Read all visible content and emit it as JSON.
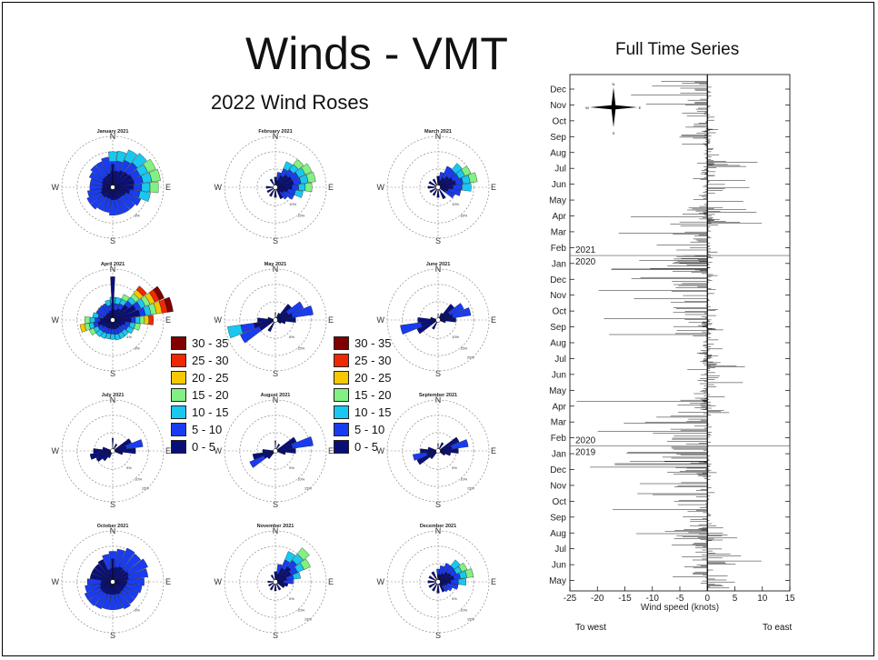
{
  "slide": {
    "title": "Winds - VMT",
    "subtitle": "2022 Wind Roses",
    "series_title": "Full Time Series",
    "to_west": "To west",
    "to_east": "To east"
  },
  "colors": {
    "speed_bins": [
      "#0a0f78",
      "#1a3cf0",
      "#19c8f0",
      "#82f082",
      "#f5c800",
      "#f02800",
      "#800000"
    ]
  },
  "legend": {
    "items": [
      "30 - 35",
      "25 - 30",
      "20 - 25",
      "15 - 20",
      "10 - 15",
      "5 - 10",
      "0 - 5"
    ]
  },
  "compass": {
    "n": "N",
    "s": "S",
    "w": "W",
    "e": "E"
  },
  "chart_data": [
    {
      "type": "polar-bar",
      "name": "wind-roses",
      "roses": [
        {
          "title": "January 2021",
          "rings": [
            "5%",
            "8%"
          ],
          "dirs": [
            [
              0,
              0.7
            ],
            [
              15,
              0.72
            ],
            [
              30,
              0.8
            ],
            [
              45,
              0.85
            ],
            [
              60,
              0.92
            ],
            [
              75,
              0.95
            ],
            [
              90,
              0.9
            ],
            [
              105,
              0.75
            ],
            [
              120,
              0.6
            ],
            [
              135,
              0.55
            ],
            [
              150,
              0.55
            ],
            [
              165,
              0.55
            ],
            [
              180,
              0.55
            ],
            [
              195,
              0.5
            ],
            [
              210,
              0.5
            ],
            [
              225,
              0.55
            ],
            [
              240,
              0.55
            ],
            [
              255,
              0.5
            ],
            [
              270,
              0.45
            ],
            [
              285,
              0.45
            ],
            [
              300,
              0.5
            ],
            [
              315,
              0.55
            ],
            [
              330,
              0.55
            ],
            [
              345,
              0.6
            ]
          ],
          "spike": [
            0,
            0.45
          ],
          "maxbin": 3
        },
        {
          "title": "February 2021",
          "rings": [
            "10%",
            "15%"
          ],
          "dirs": [
            [
              30,
              0.55
            ],
            [
              45,
              0.7
            ],
            [
              60,
              0.78
            ],
            [
              75,
              0.8
            ],
            [
              90,
              0.72
            ],
            [
              105,
              0.55
            ],
            [
              120,
              0.4
            ],
            [
              135,
              0.3
            ],
            [
              150,
              0.25
            ],
            [
              180,
              0.2
            ],
            [
              210,
              0.2
            ],
            [
              240,
              0.18
            ],
            [
              270,
              0.18
            ],
            [
              330,
              0.18
            ],
            [
              0,
              0.2
            ],
            [
              15,
              0.3
            ]
          ],
          "spike": [
            0,
            0.12
          ],
          "maxbin": 4
        },
        {
          "title": "March 2021",
          "rings": [
            "10%",
            "18%"
          ],
          "dirs": [
            [
              30,
              0.45
            ],
            [
              45,
              0.6
            ],
            [
              60,
              0.7
            ],
            [
              75,
              0.78
            ],
            [
              90,
              0.65
            ],
            [
              105,
              0.45
            ],
            [
              120,
              0.35
            ],
            [
              150,
              0.25
            ],
            [
              180,
              0.2
            ],
            [
              210,
              0.18
            ],
            [
              240,
              0.18
            ],
            [
              270,
              0.2
            ],
            [
              300,
              0.2
            ],
            [
              330,
              0.18
            ],
            [
              0,
              0.22
            ],
            [
              15,
              0.3
            ]
          ],
          "spike": [
            0,
            0.2
          ],
          "maxbin": 4
        },
        {
          "title": "April 2021",
          "rings": [
            "4%",
            "8%"
          ],
          "dirs": [
            [
              30,
              0.55
            ],
            [
              45,
              0.85
            ],
            [
              60,
              1.1
            ],
            [
              75,
              1.2
            ],
            [
              90,
              0.8
            ],
            [
              105,
              0.55
            ],
            [
              120,
              0.45
            ],
            [
              135,
              0.4
            ],
            [
              150,
              0.4
            ],
            [
              165,
              0.4
            ],
            [
              180,
              0.38
            ],
            [
              195,
              0.38
            ],
            [
              210,
              0.4
            ],
            [
              225,
              0.42
            ],
            [
              240,
              0.5
            ],
            [
              255,
              0.65
            ],
            [
              270,
              0.55
            ],
            [
              285,
              0.4
            ],
            [
              300,
              0.35
            ],
            [
              315,
              0.35
            ],
            [
              330,
              0.35
            ],
            [
              345,
              0.4
            ],
            [
              0,
              0.45
            ],
            [
              15,
              0.45
            ]
          ],
          "spike": [
            0,
            0.85
          ],
          "maxbin": 6
        },
        {
          "title": "May 2021",
          "rings": [
            "8%",
            "15%"
          ],
          "dirs": [
            [
              45,
              0.4
            ],
            [
              60,
              0.6
            ],
            [
              75,
              0.75
            ],
            [
              90,
              0.4
            ],
            [
              105,
              0.2
            ],
            [
              240,
              0.75
            ],
            [
              255,
              0.95
            ],
            [
              270,
              0.35
            ],
            [
              285,
              0.15
            ],
            [
              30,
              0.15
            ],
            [
              210,
              0.25
            ],
            [
              120,
              0.12
            ]
          ],
          "spike": [
            0,
            0.15
          ],
          "maxbin": 2
        },
        {
          "title": "June 2021",
          "rings": [
            "10%",
            "15%",
            "20%"
          ],
          "dirs": [
            [
              45,
              0.4
            ],
            [
              60,
              0.55
            ],
            [
              75,
              0.65
            ],
            [
              90,
              0.35
            ],
            [
              105,
              0.15
            ],
            [
              240,
              0.45
            ],
            [
              255,
              0.75
            ],
            [
              270,
              0.4
            ],
            [
              285,
              0.15
            ],
            [
              210,
              0.2
            ],
            [
              30,
              0.15
            ]
          ],
          "spike": [
            0,
            0.12
          ],
          "maxbin": 2
        },
        {
          "title": "July 2021",
          "rings": [
            "5%",
            "10%",
            "15%"
          ],
          "dirs": [
            [
              60,
              0.4
            ],
            [
              75,
              0.6
            ],
            [
              90,
              0.45
            ],
            [
              105,
              0.2
            ],
            [
              240,
              0.35
            ],
            [
              255,
              0.45
            ],
            [
              270,
              0.38
            ],
            [
              285,
              0.2
            ],
            [
              225,
              0.25
            ],
            [
              210,
              0.15
            ],
            [
              30,
              0.15
            ]
          ],
          "spike": [
            0,
            0.25
          ],
          "maxbin": 2
        },
        {
          "title": "August 2021",
          "rings": [
            "5%",
            "10%",
            "15%"
          ],
          "dirs": [
            [
              60,
              0.45
            ],
            [
              75,
              0.75
            ],
            [
              90,
              0.4
            ],
            [
              105,
              0.2
            ],
            [
              240,
              0.55
            ],
            [
              255,
              0.45
            ],
            [
              270,
              0.25
            ],
            [
              225,
              0.2
            ],
            [
              30,
              0.15
            ]
          ],
          "spike": [
            0,
            0.2
          ],
          "maxbin": 2
        },
        {
          "title": "September 2021",
          "rings": [
            "5%",
            "10%",
            "15%"
          ],
          "dirs": [
            [
              60,
              0.45
            ],
            [
              75,
              0.6
            ],
            [
              90,
              0.4
            ],
            [
              105,
              0.25
            ],
            [
              120,
              0.15
            ],
            [
              240,
              0.45
            ],
            [
              255,
              0.5
            ],
            [
              270,
              0.35
            ],
            [
              285,
              0.2
            ],
            [
              225,
              0.2
            ],
            [
              30,
              0.18
            ]
          ],
          "spike": [
            0,
            0.15
          ],
          "maxbin": 2
        },
        {
          "title": "October 2021",
          "rings": [
            "3%",
            "6%"
          ],
          "dirs": [
            [
              0,
              0.6
            ],
            [
              15,
              0.65
            ],
            [
              30,
              0.72
            ],
            [
              45,
              0.7
            ],
            [
              60,
              0.75
            ],
            [
              75,
              0.7
            ],
            [
              90,
              0.62
            ],
            [
              105,
              0.58
            ],
            [
              120,
              0.55
            ],
            [
              135,
              0.55
            ],
            [
              150,
              0.58
            ],
            [
              165,
              0.55
            ],
            [
              180,
              0.55
            ],
            [
              195,
              0.55
            ],
            [
              210,
              0.58
            ],
            [
              225,
              0.6
            ],
            [
              240,
              0.6
            ],
            [
              255,
              0.55
            ],
            [
              270,
              0.5
            ],
            [
              285,
              0.45
            ],
            [
              300,
              0.45
            ],
            [
              315,
              0.45
            ],
            [
              330,
              0.48
            ],
            [
              345,
              0.55
            ]
          ],
          "spike": [
            0,
            0.45
          ],
          "maxbin": 2
        },
        {
          "title": "November 2021",
          "rings": [
            "5%",
            "10%",
            "15%"
          ],
          "dirs": [
            [
              15,
              0.35
            ],
            [
              30,
              0.65
            ],
            [
              45,
              0.85
            ],
            [
              60,
              0.75
            ],
            [
              75,
              0.5
            ],
            [
              90,
              0.35
            ],
            [
              105,
              0.25
            ],
            [
              120,
              0.2
            ],
            [
              150,
              0.18
            ],
            [
              180,
              0.18
            ],
            [
              210,
              0.18
            ],
            [
              240,
              0.15
            ],
            [
              270,
              0.15
            ],
            [
              330,
              0.15
            ],
            [
              0,
              0.2
            ]
          ],
          "spike": [
            0,
            0.1
          ],
          "maxbin": 4
        },
        {
          "title": "December 2021",
          "rings": [
            "5%",
            "10%",
            "15%"
          ],
          "dirs": [
            [
              30,
              0.4
            ],
            [
              45,
              0.55
            ],
            [
              60,
              0.62
            ],
            [
              75,
              0.7
            ],
            [
              90,
              0.55
            ],
            [
              105,
              0.4
            ],
            [
              120,
              0.3
            ],
            [
              135,
              0.25
            ],
            [
              150,
              0.22
            ],
            [
              180,
              0.22
            ],
            [
              210,
              0.2
            ],
            [
              240,
              0.2
            ],
            [
              270,
              0.2
            ],
            [
              300,
              0.2
            ],
            [
              330,
              0.22
            ],
            [
              0,
              0.25
            ],
            [
              15,
              0.32
            ]
          ],
          "spike": [
            0,
            0.15
          ],
          "maxbin": 5
        }
      ]
    },
    {
      "type": "line",
      "name": "full-time-series",
      "xlabel": "Wind speed (knots)",
      "xlim": [
        -25,
        15
      ],
      "x_ticks": [
        -25,
        -20,
        -15,
        -10,
        -5,
        0,
        5,
        10,
        15
      ],
      "y_ticks": [
        "Dec",
        "Nov",
        "Oct",
        "Sep",
        "Aug",
        "Jul",
        "Jun",
        "May",
        "Apr",
        "Mar",
        "Feb",
        "Jan",
        "Dec",
        "Nov",
        "Oct",
        "Sep",
        "Aug",
        "Jul",
        "Jun",
        "May",
        "Apr",
        "Mar",
        "Feb",
        "Jan",
        "Dec",
        "Nov",
        "Oct",
        "Sep",
        "Aug",
        "Jul",
        "Jun",
        "May"
      ],
      "year_marks": [
        {
          "index": 11,
          "above": "2021",
          "below": "2020"
        },
        {
          "index": 23,
          "above": "2020",
          "below": "2019"
        }
      ],
      "bands": [
        {
          "from": 0,
          "to": 3,
          "west": 15,
          "east": 1.5
        },
        {
          "from": 3,
          "to": 5,
          "west": 2,
          "east": 3
        },
        {
          "from": 5,
          "to": 8,
          "west": 3,
          "east": 10
        },
        {
          "from": 8,
          "to": 11,
          "west": 22,
          "east": 2
        },
        {
          "from": 11,
          "to": 15,
          "west": 20,
          "east": 2
        },
        {
          "from": 15,
          "to": 17,
          "west": 3,
          "east": 3
        },
        {
          "from": 17,
          "to": 20,
          "west": 4,
          "east": 8
        },
        {
          "from": 20,
          "to": 24,
          "west": 24,
          "east": 2
        },
        {
          "from": 24,
          "to": 28,
          "west": 18,
          "east": 2
        },
        {
          "from": 28,
          "to": 31,
          "west": 8,
          "east": 10
        }
      ]
    }
  ]
}
